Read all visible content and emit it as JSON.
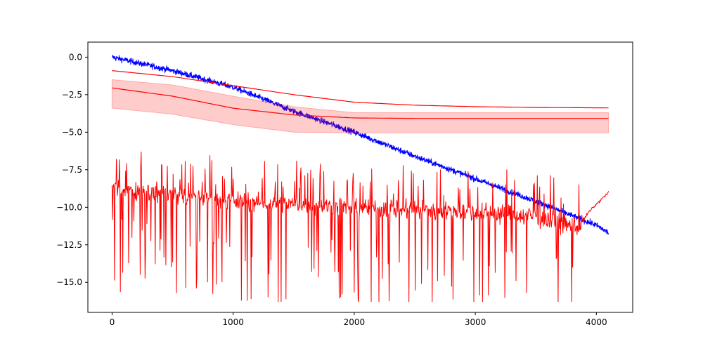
{
  "chart_data": {
    "type": "line",
    "title": "",
    "xlabel": "",
    "ylabel": "",
    "xlim": [
      -200,
      4300
    ],
    "ylim": [
      -17.0,
      1.0
    ],
    "grid": false,
    "legend": "none",
    "x_ticks": [
      0,
      1000,
      2000,
      3000,
      4000
    ],
    "x_tick_labels": [
      "0",
      "1000",
      "2000",
      "3000",
      "4000"
    ],
    "y_ticks": [
      0.0,
      -2.5,
      -5.0,
      -7.5,
      -10.0,
      -12.5,
      -15.0
    ],
    "y_tick_labels": [
      "0.0",
      "−2.5",
      "−5.0",
      "−7.5",
      "−10.0",
      "−12.5",
      "−15.0"
    ],
    "colors": {
      "blue": "#0000ff",
      "red": "#ff0000",
      "band": "#ff0000"
    },
    "series": [
      {
        "color": "#0000ff",
        "style": "noisy-line",
        "x": [
          0,
          500,
          1000,
          1500,
          2000,
          2500,
          3000,
          3500,
          4000,
          4100
        ],
        "y": [
          0.0,
          -0.9,
          -2.0,
          -3.6,
          -5.0,
          -6.6,
          -8.1,
          -9.6,
          -11.2,
          -11.7
        ],
        "noise": 0.35
      },
      {
        "color": "#ff0000",
        "style": "smooth-line",
        "x": [
          0,
          500,
          1000,
          1500,
          2000,
          2500,
          3000,
          3500,
          4100
        ],
        "y": [
          -0.9,
          -1.3,
          -1.9,
          -2.5,
          -3.0,
          -3.2,
          -3.3,
          -3.35,
          -3.38
        ]
      },
      {
        "color": "#ff0000",
        "style": "mean-with-band",
        "x": [
          0,
          500,
          1000,
          1500,
          2000,
          2500,
          3000,
          3500,
          4100
        ],
        "y": [
          -2.05,
          -2.6,
          -3.4,
          -3.85,
          -4.05,
          -4.08,
          -4.08,
          -4.08,
          -4.08
        ],
        "band_lower": [
          -3.4,
          -3.8,
          -4.5,
          -5.0,
          -5.05,
          -5.05,
          -5.05,
          -5.05,
          -5.05
        ],
        "band_upper": [
          -1.5,
          -1.85,
          -2.6,
          -3.3,
          -3.7,
          -3.7,
          -3.7,
          -3.7,
          -3.7
        ]
      },
      {
        "color": "#ff0000",
        "style": "spiky-line",
        "x": [
          0,
          1000,
          2000,
          3000,
          3500,
          3850,
          3950,
          4100
        ],
        "y": [
          -8.7,
          -9.6,
          -10.0,
          -10.3,
          -10.6,
          -11.3,
          -10.2,
          -9.0
        ],
        "spike_min": -16.3,
        "spike_max": -6.3
      }
    ]
  }
}
